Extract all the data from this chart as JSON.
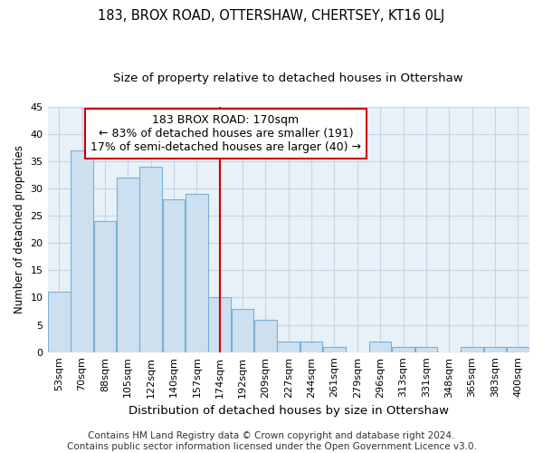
{
  "title": "183, BROX ROAD, OTTERSHAW, CHERTSEY, KT16 0LJ",
  "subtitle": "Size of property relative to detached houses in Ottershaw",
  "xlabel": "Distribution of detached houses by size in Ottershaw",
  "ylabel": "Number of detached properties",
  "bar_labels": [
    "53sqm",
    "70sqm",
    "88sqm",
    "105sqm",
    "122sqm",
    "140sqm",
    "157sqm",
    "174sqm",
    "192sqm",
    "209sqm",
    "227sqm",
    "244sqm",
    "261sqm",
    "279sqm",
    "296sqm",
    "313sqm",
    "331sqm",
    "348sqm",
    "365sqm",
    "383sqm",
    "400sqm"
  ],
  "bar_values": [
    11,
    37,
    24,
    32,
    34,
    28,
    29,
    10,
    8,
    6,
    2,
    2,
    1,
    0,
    2,
    1,
    1,
    0,
    1,
    1,
    1
  ],
  "bar_color": "#cce0f0",
  "bar_edgecolor": "#7ab0d4",
  "grid_color": "#c5d5e5",
  "background_color": "#e8f0f8",
  "vline_x_index": 7,
  "vline_color": "#cc0000",
  "annotation_line1": "183 BROX ROAD: 170sqm",
  "annotation_line2": "← 83% of detached houses are smaller (191)",
  "annotation_line3": "17% of semi-detached houses are larger (40) →",
  "annotation_box_facecolor": "#ffffff",
  "annotation_box_edgecolor": "#cc0000",
  "ylim": [
    0,
    45
  ],
  "yticks": [
    0,
    5,
    10,
    15,
    20,
    25,
    30,
    35,
    40,
    45
  ],
  "footer_line1": "Contains HM Land Registry data © Crown copyright and database right 2024.",
  "footer_line2": "Contains public sector information licensed under the Open Government Licence v3.0.",
  "title_fontsize": 10.5,
  "subtitle_fontsize": 9.5,
  "xlabel_fontsize": 9.5,
  "ylabel_fontsize": 8.5,
  "tick_fontsize": 8,
  "annotation_fontsize": 9,
  "footer_fontsize": 7.5
}
